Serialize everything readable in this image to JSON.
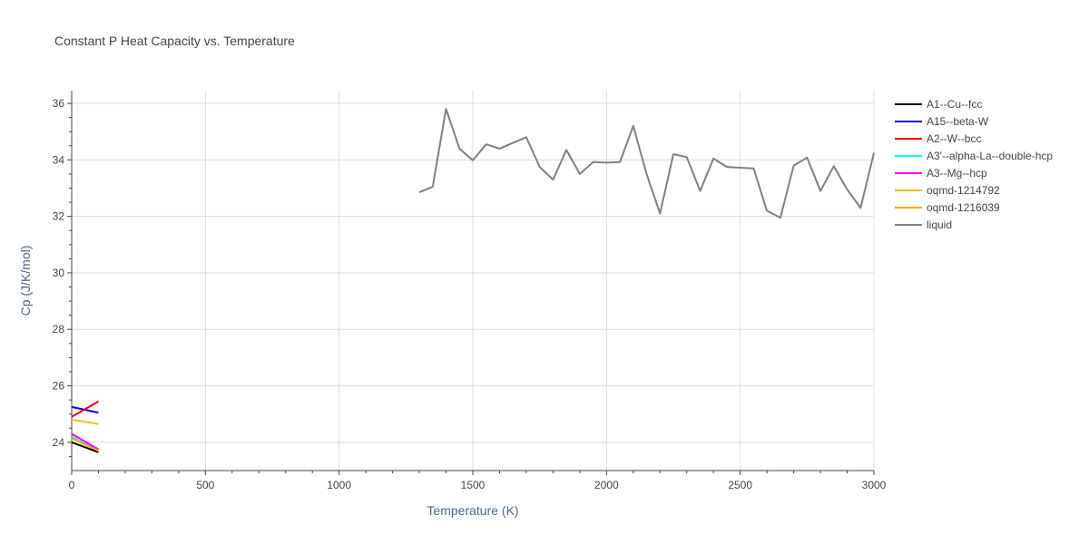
{
  "chart_data": {
    "type": "line",
    "title": "Constant P Heat Capacity vs. Temperature",
    "xlabel": "Temperature (K)",
    "ylabel": "Cp (J/K/mol)",
    "xlim": [
      0,
      3000
    ],
    "ylim": [
      23,
      36.45
    ],
    "x_ticks": [
      0,
      500,
      1000,
      1500,
      2000,
      2500,
      3000
    ],
    "x_tick_labels": [
      "0",
      "500",
      "1000",
      "1500",
      "2000",
      "2500",
      "3000"
    ],
    "y_ticks": [
      24,
      26,
      28,
      30,
      32,
      34,
      36
    ],
    "y_tick_labels": [
      "24",
      "26",
      "28",
      "30",
      "32",
      "34",
      "36"
    ],
    "grid": true,
    "legend_position": "right",
    "series": [
      {
        "name": "A1--Cu--fcc",
        "color": "#000000",
        "x": [
          0,
          100
        ],
        "y": [
          24.0,
          23.65
        ]
      },
      {
        "name": "A15--beta-W",
        "color": "#0000ee",
        "x": [
          0,
          100
        ],
        "y": [
          25.25,
          25.05
        ]
      },
      {
        "name": "A2--W--bcc",
        "color": "#ee0000",
        "x": [
          0,
          100
        ],
        "y": [
          24.9,
          25.45
        ]
      },
      {
        "name": "A3'--alpha-La--double-hcp",
        "color": "#00ffff",
        "x": [
          0,
          100
        ],
        "y": [
          24.2,
          23.7
        ]
      },
      {
        "name": "A3--Mg--hcp",
        "color": "#ff00ff",
        "x": [
          0,
          100
        ],
        "y": [
          24.3,
          23.75
        ]
      },
      {
        "name": "oqmd-1214792",
        "color": "#e6c229",
        "x": [
          0,
          100
        ],
        "y": [
          24.8,
          24.65
        ]
      },
      {
        "name": "oqmd-1216039",
        "color": "#ffa500",
        "x": [
          0,
          100
        ],
        "y": [
          24.15,
          23.7
        ]
      },
      {
        "name": "liquid",
        "color": "#808080",
        "x": [
          1300,
          1350,
          1400,
          1450,
          1500,
          1550,
          1600,
          1650,
          1700,
          1750,
          1800,
          1850,
          1900,
          1950,
          2000,
          2050,
          2100,
          2150,
          2200,
          2250,
          2300,
          2350,
          2400,
          2450,
          2500,
          2550,
          2600,
          2650,
          2700,
          2750,
          2800,
          2850,
          2900,
          2950,
          3000
        ],
        "y": [
          32.85,
          33.05,
          35.8,
          34.4,
          33.98,
          34.55,
          34.4,
          34.6,
          34.8,
          33.75,
          33.3,
          34.35,
          33.5,
          33.92,
          33.9,
          33.92,
          35.2,
          33.5,
          32.1,
          34.2,
          34.1,
          32.9,
          34.05,
          33.75,
          33.72,
          33.7,
          32.2,
          31.95,
          33.8,
          34.08,
          32.9,
          33.78,
          32.95,
          32.3,
          34.25
        ]
      }
    ]
  }
}
